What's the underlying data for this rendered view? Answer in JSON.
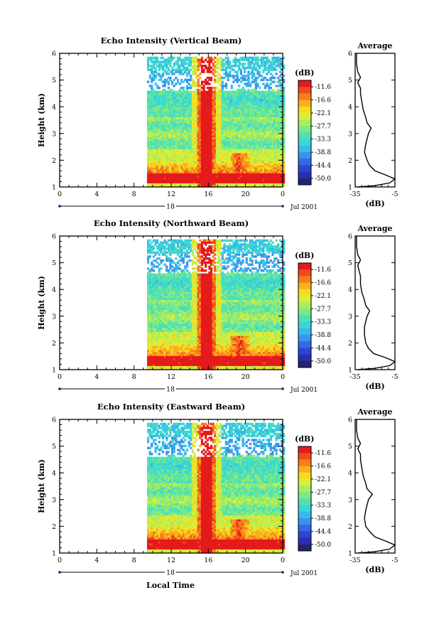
{
  "figure": {
    "xlabel": "Local Time",
    "date_label": "18",
    "month_label": "Jul 2001",
    "colorbar_unit": "(dB)",
    "colorbar_ticks": [
      "-11.6",
      "-16.6",
      "-22.1",
      "-27.7",
      "-33.3",
      "-38.8",
      "-44.4",
      "-50.0"
    ],
    "colorbar_colors": [
      "#e41a1c",
      "#f04a1c",
      "#f77d1c",
      "#fbae1c",
      "#f5dc20",
      "#d9ee3a",
      "#a8ee5e",
      "#7be88a",
      "#4fe0b4",
      "#38d6d8",
      "#3ab8ec",
      "#3a92ee",
      "#3468e6",
      "#2d45d6",
      "#2a2eb0",
      "#23236e"
    ]
  },
  "chart_data": [
    {
      "type": "heatmap",
      "title": "Echo Intensity (Vertical Beam)",
      "ylabel": "Height (km)",
      "xlim": [
        0,
        24
      ],
      "ylim": [
        1,
        6
      ],
      "xticks": [
        "0",
        "4",
        "8",
        "12",
        "16",
        "20",
        "0"
      ],
      "yticks": [
        "1",
        "2",
        "3",
        "4",
        "5",
        "6"
      ],
      "data_start_hour": 9.3,
      "spike_hour": 15.8,
      "avg_title": "Average",
      "avg_xlabel": "(dB)",
      "avg_xlim": [
        -35,
        -5
      ],
      "avg_xticks": [
        "-35",
        "-5"
      ],
      "avg_profile": {
        "h": [
          1.0,
          1.05,
          1.15,
          1.3,
          1.45,
          1.6,
          1.8,
          2.0,
          2.3,
          2.6,
          2.8,
          3.0,
          3.2,
          3.4,
          3.6,
          3.9,
          4.2,
          4.5,
          4.7,
          4.9,
          5.1,
          5.3,
          5.6,
          6.0
        ],
        "db": [
          -33,
          -20,
          -9,
          -5,
          -12,
          -20,
          -24,
          -26,
          -28,
          -27,
          -26,
          -25,
          -23,
          -26,
          -27,
          -29,
          -30,
          -31,
          -31,
          -33,
          -31,
          -33,
          -34,
          -34
        ]
      }
    },
    {
      "type": "heatmap",
      "title": "Echo Intensity (Northward Beam)",
      "ylabel": "Height (km)",
      "xlim": [
        0,
        24
      ],
      "ylim": [
        1,
        6
      ],
      "xticks": [
        "0",
        "4",
        "8",
        "12",
        "16",
        "20",
        "0"
      ],
      "yticks": [
        "1",
        "2",
        "3",
        "4",
        "5",
        "6"
      ],
      "data_start_hour": 9.3,
      "spike_hour": 15.8,
      "avg_title": "Average",
      "avg_xlabel": "(dB)",
      "avg_xlim": [
        -35,
        -5
      ],
      "avg_xticks": [
        "-35",
        "-5"
      ],
      "avg_profile": {
        "h": [
          1.0,
          1.05,
          1.15,
          1.3,
          1.45,
          1.6,
          1.8,
          2.0,
          2.3,
          2.6,
          2.8,
          3.0,
          3.2,
          3.4,
          3.6,
          3.9,
          4.2,
          4.5,
          4.7,
          4.9,
          5.1,
          5.3,
          5.6,
          6.0
        ],
        "db": [
          -33,
          -20,
          -9,
          -5,
          -12,
          -21,
          -25,
          -27,
          -28,
          -28,
          -27,
          -26,
          -24,
          -27,
          -28,
          -30,
          -31,
          -31,
          -32,
          -33,
          -31,
          -33,
          -34,
          -34
        ]
      }
    },
    {
      "type": "heatmap",
      "title": "Echo Intensity (Eastward Beam)",
      "ylabel": "Height (km)",
      "xlim": [
        0,
        24
      ],
      "ylim": [
        1,
        6
      ],
      "xticks": [
        "0",
        "4",
        "8",
        "12",
        "16",
        "20",
        "0"
      ],
      "yticks": [
        "1",
        "2",
        "3",
        "4",
        "5",
        "6"
      ],
      "data_start_hour": 9.3,
      "spike_hour": 15.8,
      "avg_title": "Average",
      "avg_xlabel": "(dB)",
      "avg_xlim": [
        -35,
        -5
      ],
      "avg_xticks": [
        "-35",
        "-5"
      ],
      "avg_profile": {
        "h": [
          1.0,
          1.05,
          1.15,
          1.3,
          1.45,
          1.6,
          1.8,
          2.0,
          2.3,
          2.6,
          2.8,
          3.0,
          3.2,
          3.4,
          3.6,
          3.9,
          4.2,
          4.5,
          4.7,
          4.9,
          5.1,
          5.3,
          5.6,
          6.0
        ],
        "db": [
          -33,
          -20,
          -9,
          -5,
          -12,
          -20,
          -24,
          -27,
          -28,
          -27,
          -26,
          -25,
          -22,
          -26,
          -27,
          -29,
          -30,
          -31,
          -31,
          -33,
          -31,
          -33,
          -34,
          -34
        ]
      }
    }
  ]
}
